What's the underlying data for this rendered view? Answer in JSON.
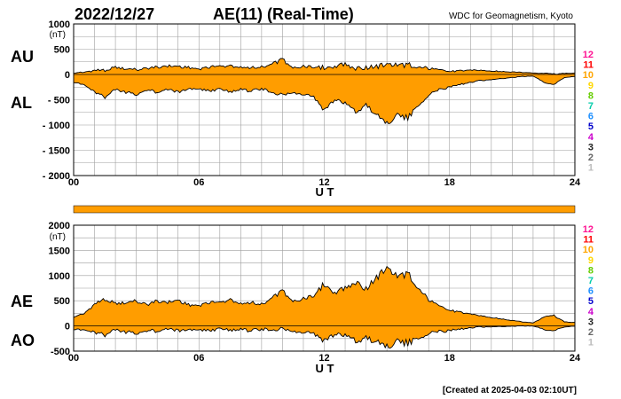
{
  "header": {
    "date": "2022/12/27",
    "title": "AE(11) (Real-Time)",
    "source": "WDC for Geomagnetism, Kyoto"
  },
  "footer": {
    "created": "[Created at 2025-04-03 02:10UT]"
  },
  "legend": {
    "levels": [
      "12",
      "11",
      "10",
      "9",
      "8",
      "7",
      "6",
      "5",
      "4",
      "3",
      "2",
      "1"
    ],
    "colors": [
      "#ff1493",
      "#ff0000",
      "#ffa500",
      "#ffd700",
      "#66cc00",
      "#00ccaa",
      "#1e90ff",
      "#0000cc",
      "#cc00cc",
      "#222222",
      "#666666",
      "#bbbbbb"
    ]
  },
  "colors": {
    "fill": "#ff9d00",
    "stroke": "#000000",
    "grid": "#9e9e9e",
    "bar": "#ff9d00"
  },
  "chart_data": [
    {
      "type": "area",
      "ylabel_unit": "(nT)",
      "xlabel": "U T",
      "xlim": [
        0,
        24
      ],
      "ylim": [
        -2000,
        1000
      ],
      "x_ticks": [
        "00",
        "06",
        "12",
        "18",
        "24"
      ],
      "y_tick_labels": [
        "1000",
        "500",
        "0",
        "- 500",
        "- 1000",
        "- 1500",
        "- 2000"
      ],
      "series_labels": [
        "AU",
        "AL"
      ],
      "x": [
        0,
        0.5,
        1,
        1.5,
        2,
        2.5,
        3,
        3.5,
        4,
        4.5,
        5,
        5.5,
        6,
        6.5,
        7,
        7.5,
        8,
        8.5,
        9,
        9.5,
        10,
        10.5,
        11,
        11.5,
        12,
        12.5,
        13,
        13.5,
        14,
        14.5,
        15,
        15.5,
        16,
        16.5,
        17,
        17.5,
        18,
        18.5,
        19,
        19.5,
        20,
        20.5,
        21,
        21.5,
        22,
        22.5,
        23,
        23.5,
        24
      ],
      "series": [
        {
          "name": "AU",
          "values": [
            30,
            50,
            80,
            90,
            140,
            110,
            100,
            120,
            150,
            170,
            160,
            140,
            110,
            150,
            160,
            170,
            150,
            140,
            150,
            200,
            300,
            140,
            160,
            130,
            140,
            160,
            220,
            120,
            140,
            160,
            180,
            200,
            190,
            150,
            120,
            80,
            60,
            70,
            90,
            80,
            70,
            60,
            50,
            40,
            30,
            20,
            10,
            20,
            30
          ]
        },
        {
          "name": "AL",
          "values": [
            -150,
            -200,
            -350,
            -450,
            -300,
            -350,
            -400,
            -300,
            -350,
            -300,
            -350,
            -280,
            -300,
            -320,
            -300,
            -350,
            -300,
            -330,
            -280,
            -350,
            -400,
            -360,
            -380,
            -450,
            -700,
            -500,
            -550,
            -750,
            -600,
            -800,
            -950,
            -800,
            -850,
            -600,
            -400,
            -300,
            -250,
            -200,
            -150,
            -120,
            -100,
            -80,
            -60,
            -40,
            -30,
            -150,
            -200,
            -60,
            -40
          ]
        }
      ]
    },
    {
      "type": "area",
      "ylabel_unit": "(nT)",
      "xlabel": "U T",
      "xlim": [
        0,
        24
      ],
      "ylim": [
        -500,
        2000
      ],
      "x_ticks": [
        "00",
        "06",
        "12",
        "18",
        "24"
      ],
      "y_tick_labels": [
        "2000",
        "1500",
        "1000",
        "500",
        "0",
        "-500"
      ],
      "series_labels": [
        "AE",
        "AO"
      ],
      "x": [
        0,
        0.5,
        1,
        1.5,
        2,
        2.5,
        3,
        3.5,
        4,
        4.5,
        5,
        5.5,
        6,
        6.5,
        7,
        7.5,
        8,
        8.5,
        9,
        9.5,
        10,
        10.5,
        11,
        11.5,
        12,
        12.5,
        13,
        13.5,
        14,
        14.5,
        15,
        15.5,
        16,
        16.5,
        17,
        17.5,
        18,
        18.5,
        19,
        19.5,
        20,
        20.5,
        21,
        21.5,
        22,
        22.5,
        23,
        23.5,
        24
      ],
      "series": [
        {
          "name": "AE",
          "values": [
            180,
            250,
            430,
            540,
            440,
            460,
            500,
            420,
            500,
            470,
            510,
            420,
            410,
            470,
            460,
            520,
            450,
            470,
            430,
            550,
            700,
            500,
            540,
            580,
            840,
            660,
            770,
            870,
            740,
            960,
            1130,
            1000,
            1040,
            750,
            520,
            380,
            310,
            270,
            240,
            200,
            170,
            140,
            110,
            80,
            60,
            170,
            210,
            80,
            70
          ]
        },
        {
          "name": "AO",
          "values": [
            -60,
            -75,
            -135,
            -180,
            -80,
            -120,
            -150,
            -90,
            -100,
            -65,
            -95,
            -70,
            -95,
            -85,
            -70,
            -90,
            -75,
            -95,
            -65,
            -75,
            -50,
            -110,
            -110,
            -160,
            -280,
            -170,
            -165,
            -315,
            -230,
            -320,
            -385,
            -300,
            -330,
            -225,
            -140,
            -110,
            -95,
            -65,
            -30,
            -20,
            -15,
            -10,
            -5,
            0,
            0,
            -65,
            -95,
            -20,
            -5
          ]
        }
      ]
    }
  ]
}
